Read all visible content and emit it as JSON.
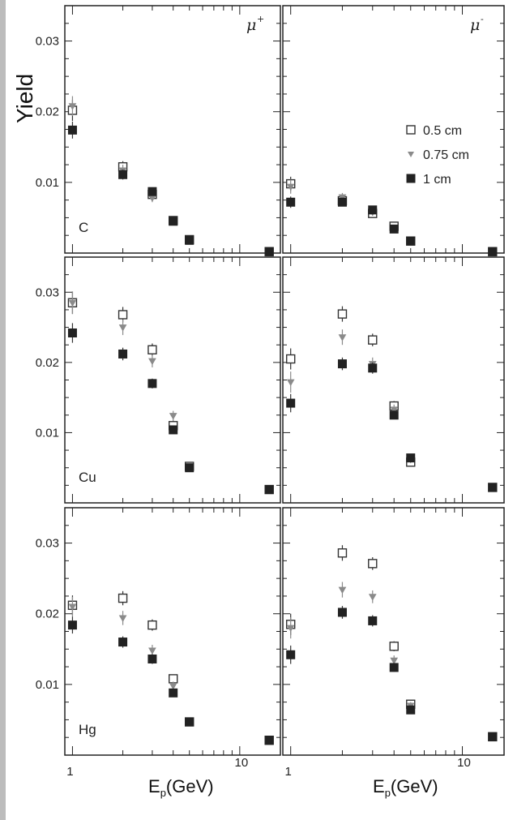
{
  "chart_data": {
    "type": "scatter",
    "ylabel": "Yield",
    "xlabel_main": "E",
    "xlabel_sub": "p",
    "xlabel_rest": "(GeV)",
    "xscale": "log",
    "xlim": [
      0.9,
      17.5
    ],
    "ylim": [
      0,
      0.035
    ],
    "y_ticks": [
      "0.01",
      "0.02",
      "0.03"
    ],
    "x_ticks": [
      "1",
      "10"
    ],
    "legend": {
      "placement": "top-right of upper-right panel",
      "entries": [
        {
          "label": "0.5 cm",
          "marker": "open-square",
          "color": "#333333"
        },
        {
          "label": "0.75 cm",
          "marker": "triangle-down",
          "color": "#8a8a8a"
        },
        {
          "label": "1 cm",
          "marker": "filled-square",
          "color": "#222222"
        }
      ]
    },
    "columns": [
      {
        "label": "μ",
        "sup": "+"
      },
      {
        "label": "μ",
        "sup": "-"
      }
    ],
    "rows": [
      "C",
      "Cu",
      "Hg"
    ],
    "panels": [
      {
        "row": 0,
        "col": 0,
        "target": "C",
        "sign": "+",
        "series": [
          {
            "name": "0.5 cm",
            "x": [
              1,
              2,
              3,
              4,
              5,
              15
            ],
            "y": [
              0.0202,
              0.0122,
              0.0083,
              0.0046,
              0.0019,
              0.0002
            ],
            "err": [
              0.0015,
              0.0008,
              0.0006,
              0.0004,
              0.0003,
              0.0002
            ]
          },
          {
            "name": "0.75 cm",
            "x": [
              1,
              2,
              3,
              4,
              5,
              15
            ],
            "y": [
              0.0208,
              0.0117,
              0.0078,
              0.0046,
              0.0019,
              0.0002
            ],
            "err": [
              0.0014,
              0.0008,
              0.0006,
              0.0004,
              0.0003,
              0.0002
            ]
          },
          {
            "name": "1 cm",
            "x": [
              1,
              2,
              3,
              4,
              5,
              15
            ],
            "y": [
              0.0174,
              0.0111,
              0.0087,
              0.0045,
              0.0018,
              0.0002
            ],
            "err": [
              0.0012,
              0.0007,
              0.0006,
              0.0004,
              0.0003,
              0.0002
            ]
          }
        ]
      },
      {
        "row": 0,
        "col": 1,
        "target": "",
        "sign": "-",
        "series": [
          {
            "name": "0.5 cm",
            "x": [
              1,
              2,
              3,
              4,
              5,
              15
            ],
            "y": [
              0.0098,
              0.0074,
              0.0056,
              0.0038,
              0.0017,
              0.0002
            ],
            "err": [
              0.001,
              0.0006,
              0.0005,
              0.0004,
              0.0003,
              0.0002
            ]
          },
          {
            "name": "0.75 cm",
            "x": [
              1,
              2,
              3,
              4,
              5,
              15
            ],
            "y": [
              0.0094,
              0.0079,
              0.0058,
              0.0036,
              0.0017,
              0.0002
            ],
            "err": [
              0.001,
              0.0006,
              0.0005,
              0.0004,
              0.0003,
              0.0002
            ]
          },
          {
            "name": "1 cm",
            "x": [
              1,
              2,
              3,
              4,
              5,
              15
            ],
            "y": [
              0.0072,
              0.0072,
              0.0061,
              0.0034,
              0.0017,
              0.0002
            ],
            "err": [
              0.0008,
              0.0005,
              0.0005,
              0.0004,
              0.0003,
              0.0002
            ]
          }
        ]
      },
      {
        "row": 1,
        "col": 0,
        "target": "Cu",
        "sign": "+",
        "series": [
          {
            "name": "0.5 cm",
            "x": [
              1,
              2,
              3,
              4,
              5,
              15
            ],
            "y": [
              0.0285,
              0.0268,
              0.0218,
              0.011,
              0.0052,
              0.0019
            ],
            "err": [
              0.0016,
              0.0011,
              0.0009,
              0.0007,
              0.0004,
              0.0003
            ]
          },
          {
            "name": "0.75 cm",
            "x": [
              1,
              2,
              3,
              4,
              5,
              15
            ],
            "y": [
              0.0285,
              0.025,
              0.0202,
              0.0124,
              0.005,
              0.0019
            ],
            "err": [
              0.0016,
              0.0011,
              0.0009,
              0.0007,
              0.0004,
              0.0003
            ]
          },
          {
            "name": "1 cm",
            "x": [
              1,
              2,
              3,
              4,
              5,
              15
            ],
            "y": [
              0.0242,
              0.0212,
              0.017,
              0.0104,
              0.005,
              0.0019
            ],
            "err": [
              0.0014,
              0.0009,
              0.0007,
              0.0006,
              0.0004,
              0.0003
            ]
          }
        ]
      },
      {
        "row": 1,
        "col": 1,
        "target": "",
        "sign": "-",
        "series": [
          {
            "name": "0.5 cm",
            "x": [
              1,
              2,
              3,
              4,
              5,
              15
            ],
            "y": [
              0.0205,
              0.0269,
              0.0232,
              0.0138,
              0.0058,
              0.0022
            ],
            "err": [
              0.0015,
              0.0011,
              0.0009,
              0.0007,
              0.0004,
              0.0003
            ]
          },
          {
            "name": "0.75 cm",
            "x": [
              1,
              2,
              3,
              4,
              5,
              15
            ],
            "y": [
              0.0172,
              0.0236,
              0.0198,
              0.0133,
              0.0062,
              0.0022
            ],
            "err": [
              0.0015,
              0.0011,
              0.0009,
              0.0007,
              0.0004,
              0.0003
            ]
          },
          {
            "name": "1 cm",
            "x": [
              1,
              2,
              3,
              4,
              5,
              15
            ],
            "y": [
              0.0142,
              0.0198,
              0.0192,
              0.0125,
              0.0064,
              0.0022
            ],
            "err": [
              0.0013,
              0.0009,
              0.0008,
              0.0006,
              0.0004,
              0.0003
            ]
          }
        ]
      },
      {
        "row": 2,
        "col": 0,
        "target": "Hg",
        "sign": "+",
        "series": [
          {
            "name": "0.5 cm",
            "x": [
              1,
              2,
              3,
              4,
              5,
              15
            ],
            "y": [
              0.0212,
              0.0222,
              0.0184,
              0.0108,
              0.0047,
              0.0021
            ],
            "err": [
              0.0014,
              0.001,
              0.0008,
              0.0006,
              0.0004,
              0.0003
            ]
          },
          {
            "name": "0.75 cm",
            "x": [
              1,
              2,
              3,
              4,
              5,
              15
            ],
            "y": [
              0.021,
              0.0194,
              0.0148,
              0.0098,
              0.0047,
              0.0021
            ],
            "err": [
              0.0014,
              0.001,
              0.0008,
              0.0006,
              0.0004,
              0.0003
            ]
          },
          {
            "name": "1 cm",
            "x": [
              1,
              2,
              3,
              4,
              5,
              15
            ],
            "y": [
              0.0184,
              0.016,
              0.0136,
              0.0088,
              0.0047,
              0.0021
            ],
            "err": [
              0.0012,
              0.0008,
              0.0007,
              0.0005,
              0.0004,
              0.0003
            ]
          }
        ]
      },
      {
        "row": 2,
        "col": 1,
        "target": "",
        "sign": "-",
        "series": [
          {
            "name": "0.5 cm",
            "x": [
              1,
              2,
              3,
              4,
              5,
              15
            ],
            "y": [
              0.0185,
              0.0286,
              0.0271,
              0.0154,
              0.0072,
              0.0026
            ],
            "err": [
              0.0015,
              0.0011,
              0.0009,
              0.0007,
              0.0005,
              0.0003
            ]
          },
          {
            "name": "0.75 cm",
            "x": [
              1,
              2,
              3,
              4,
              5,
              15
            ],
            "y": [
              0.018,
              0.0234,
              0.0224,
              0.0134,
              0.007,
              0.0026
            ],
            "err": [
              0.0015,
              0.0011,
              0.0009,
              0.0007,
              0.0005,
              0.0003
            ]
          },
          {
            "name": "1 cm",
            "x": [
              1,
              2,
              3,
              4,
              5,
              15
            ],
            "y": [
              0.0142,
              0.0202,
              0.019,
              0.0124,
              0.0064,
              0.0026
            ],
            "err": [
              0.0013,
              0.0009,
              0.0008,
              0.0006,
              0.0004,
              0.0003
            ]
          }
        ]
      }
    ]
  }
}
